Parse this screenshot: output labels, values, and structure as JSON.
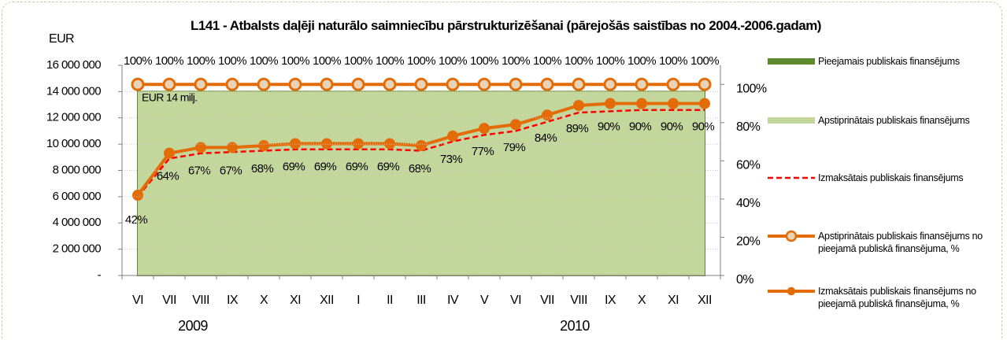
{
  "chart_data": {
    "type": "combo",
    "title": "L141 - Atbalsts daļēji naturālo saimniecību pārstrukturizēšanai (pārejošās saistības no 2004.-2006.gadam)",
    "y_label": "EUR",
    "annotation": "EUR 14 milj.",
    "categories": [
      "VI",
      "VII",
      "VIII",
      "IX",
      "X",
      "XI",
      "XII",
      "I",
      "II",
      "III",
      "IV",
      "V",
      "VI",
      "VII",
      "VIII",
      "IX",
      "X",
      "XI",
      "XII"
    ],
    "groups": [
      {
        "label": "2009",
        "start": 0,
        "end": 6
      },
      {
        "label": "2010",
        "start": 7,
        "end": 18
      }
    ],
    "ylim": [
      0,
      16000000
    ],
    "yticks": [
      {
        "value": 0,
        "label": "-"
      },
      {
        "value": 2000000,
        "label": "2 000 000"
      },
      {
        "value": 4000000,
        "label": "4 000 000"
      },
      {
        "value": 6000000,
        "label": "6 000 000"
      },
      {
        "value": 8000000,
        "label": "8 000 000"
      },
      {
        "value": 10000000,
        "label": "10 000 000"
      },
      {
        "value": 12000000,
        "label": "12 000 000"
      },
      {
        "value": 14000000,
        "label": "14 000 000"
      },
      {
        "value": 16000000,
        "label": "16 000 000"
      }
    ],
    "y2lim": [
      0,
      110
    ],
    "y2ticks": [
      {
        "value": 0,
        "label": "0%"
      },
      {
        "value": 20,
        "label": "20%"
      },
      {
        "value": 40,
        "label": "40%"
      },
      {
        "value": 60,
        "label": "60%"
      },
      {
        "value": 80,
        "label": "80%"
      },
      {
        "value": 100,
        "label": "100%"
      }
    ],
    "grid": true,
    "legend": "right",
    "series": [
      {
        "name": "Pieejamais publiskais finansējums",
        "type": "area",
        "color": "#5e8a2e",
        "values": [
          14000000,
          14000000,
          14000000,
          14000000,
          14000000,
          14000000,
          14000000,
          14000000,
          14000000,
          14000000,
          14000000,
          14000000,
          14000000,
          14000000,
          14000000,
          14000000,
          14000000,
          14000000,
          14000000
        ]
      },
      {
        "name": "Apstiprinātais publiskais finansējums",
        "type": "area",
        "color": "#c3d69b",
        "values": [
          14000000,
          14000000,
          14000000,
          14000000,
          14000000,
          14000000,
          14000000,
          14000000,
          14000000,
          14000000,
          14000000,
          14000000,
          14000000,
          14000000,
          14000000,
          14000000,
          14000000,
          14000000,
          14000000
        ]
      },
      {
        "name": "Izmaksātais publiskais finansējums",
        "type": "line",
        "dash": true,
        "color": "#ff0000",
        "values": [
          6000000,
          8900000,
          9300000,
          9400000,
          9500000,
          9600000,
          9600000,
          9600000,
          9600000,
          9500000,
          10200000,
          10700000,
          11000000,
          11700000,
          12400000,
          12500000,
          12600000,
          12600000,
          12600000
        ]
      },
      {
        "name": "Apstiprinātais  publiskais finansējums  no pieejamā publiskā finansējuma, %",
        "type": "line",
        "axis": "y2",
        "marker": "hollow",
        "color": "#e36c09",
        "values": [
          100,
          100,
          100,
          100,
          100,
          100,
          100,
          100,
          100,
          100,
          100,
          100,
          100,
          100,
          100,
          100,
          100,
          100,
          100
        ],
        "value_labels": [
          "100%",
          "100%",
          "100%",
          "100%",
          "100%",
          "100%",
          "100%",
          "100%",
          "100%",
          "100%",
          "100%",
          "100%",
          "100%",
          "100%",
          "100%",
          "100%",
          "100%",
          "100%",
          "100%"
        ]
      },
      {
        "name": "Izmaksātais publiskais finansējums no pieejamā publiskā finansējuma, %",
        "type": "line",
        "axis": "y2",
        "marker": "solid",
        "color": "#e36c09",
        "values": [
          42,
          64,
          67,
          67,
          68,
          69,
          69,
          69,
          69,
          68,
          73,
          77,
          79,
          84,
          89,
          90,
          90,
          90,
          90
        ],
        "value_labels": [
          "42%",
          "64%",
          "67%",
          "67%",
          "68%",
          "69%",
          "69%",
          "69%",
          "69%",
          "68%",
          "73%",
          "77%",
          "79%",
          "84%",
          "89%",
          "90%",
          "90%",
          "90%",
          "90%"
        ]
      }
    ]
  }
}
